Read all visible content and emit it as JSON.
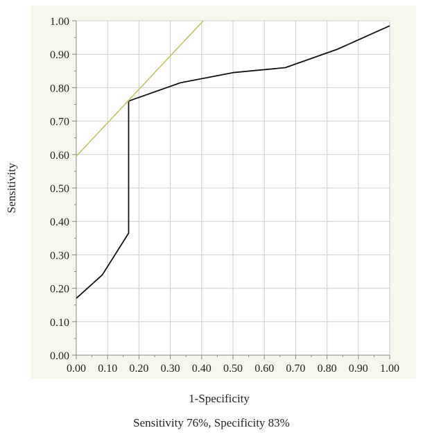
{
  "chart_data": {
    "type": "line",
    "xlabel": "1-Specificity",
    "ylabel": "Sensitivity",
    "xlim": [
      0,
      1
    ],
    "ylim": [
      0,
      1
    ],
    "x_ticks": [
      "0.00",
      "0.10",
      "0.20",
      "0.30",
      "0.40",
      "0.50",
      "0.60",
      "0.70",
      "0.80",
      "0.90",
      "1.00"
    ],
    "y_ticks": [
      "0.00",
      "0.10",
      "0.20",
      "0.30",
      "0.40",
      "0.50",
      "0.60",
      "0.70",
      "0.80",
      "0.90",
      "1.00"
    ],
    "grid": true,
    "plot_background": "#f6f6ed",
    "series": [
      {
        "color": "#111111",
        "x": [
          0.0,
          0.083,
          0.167,
          0.167,
          0.333,
          0.5,
          0.667,
          0.833,
          1.0
        ],
        "y": [
          0.17,
          0.24,
          0.365,
          0.76,
          0.815,
          0.845,
          0.86,
          0.915,
          0.985
        ]
      },
      {
        "color": "#c8c870",
        "x": [
          0.0,
          0.405
        ],
        "y": [
          0.595,
          1.0
        ]
      }
    ]
  },
  "caption": "Sensitivity 76%, Specificity 83%"
}
